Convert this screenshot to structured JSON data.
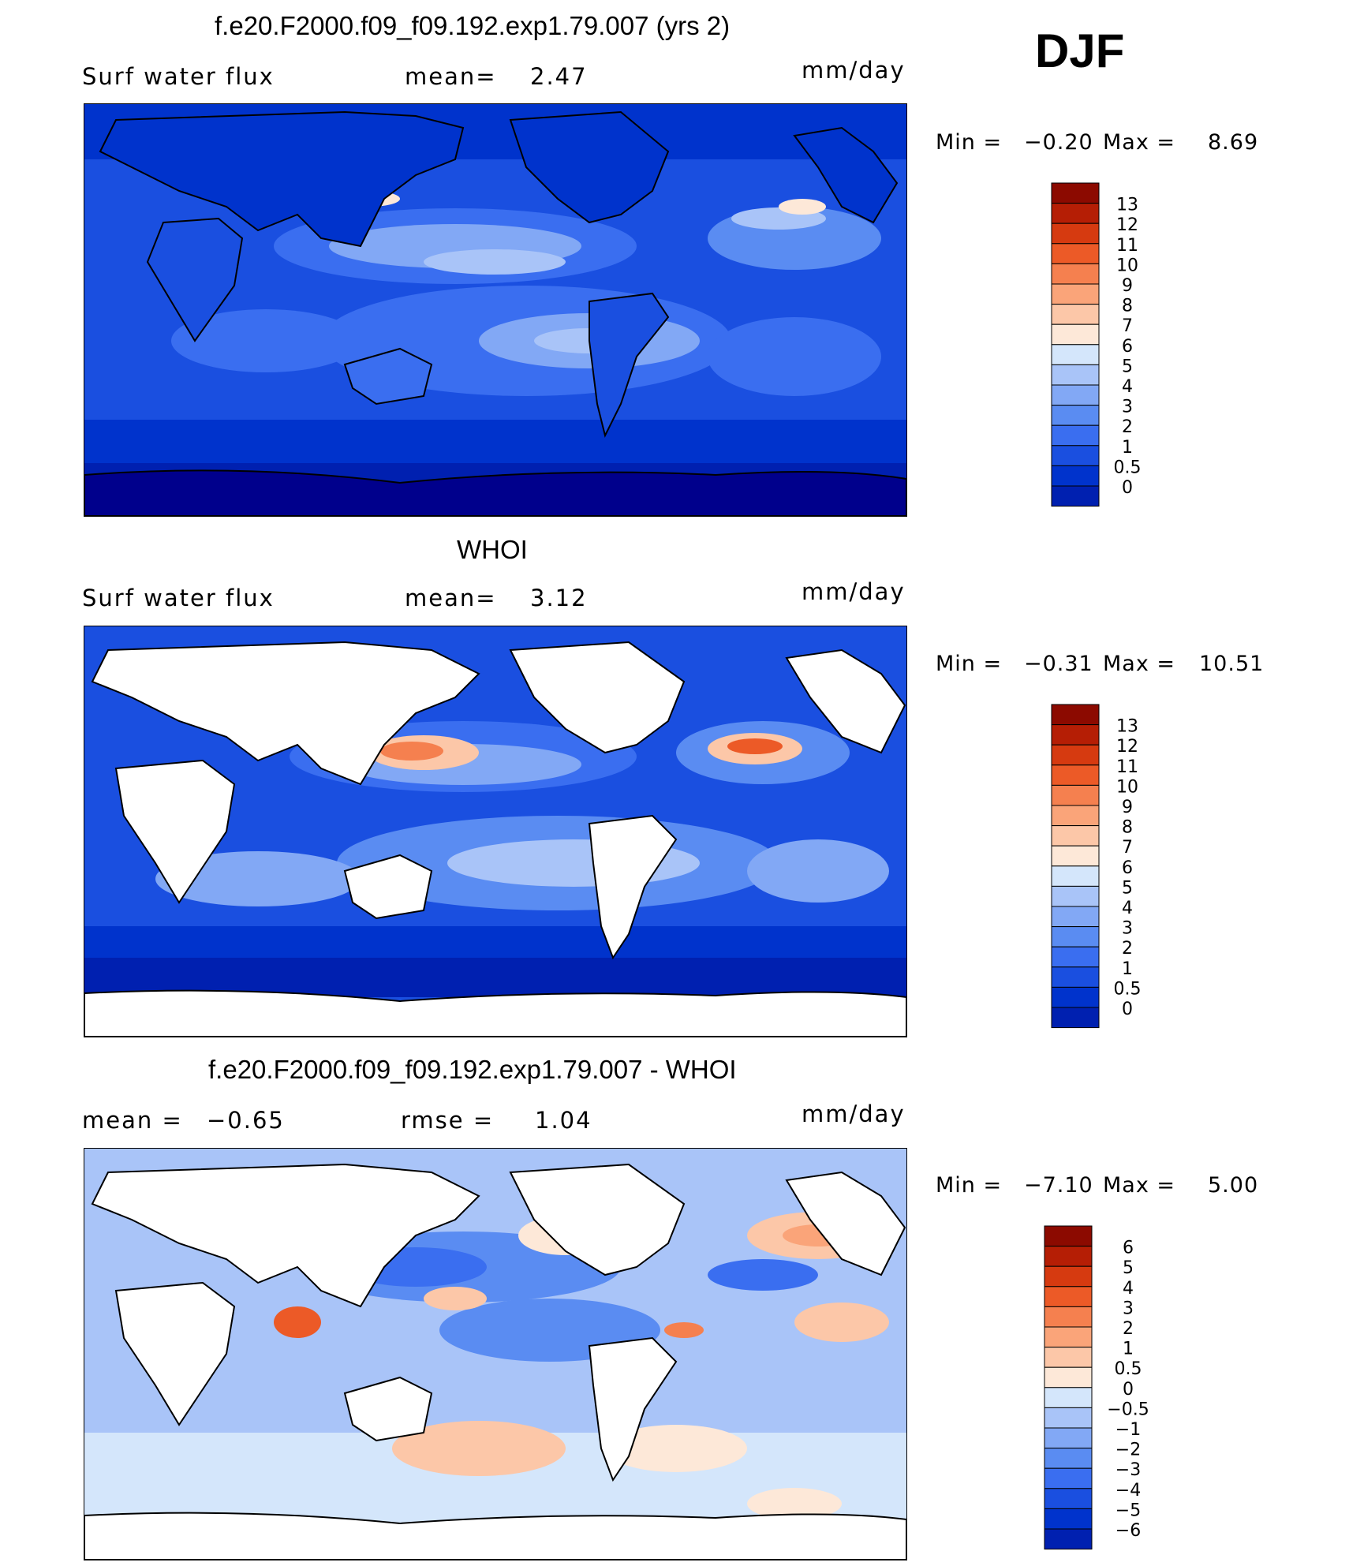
{
  "season": "DJF",
  "colors": {
    "land": "#ffffff",
    "coast": "#000000",
    "flux_scale": [
      "#00008c",
      "#0020b0",
      "#0033cc",
      "#1a4fe0",
      "#3a6ef0",
      "#5a8cf2",
      "#82a8f5",
      "#a9c4f8",
      "#d4e6fb",
      "#fde8d8",
      "#fcc7a8",
      "#faa479",
      "#f5804f",
      "#ec5a27",
      "#d63a10",
      "#b51e05",
      "#8c0a00"
    ],
    "diff_scale": [
      "#00008c",
      "#0020b0",
      "#0033cc",
      "#1a4fe0",
      "#3a6ef0",
      "#5a8cf2",
      "#82a8f5",
      "#a9c4f8",
      "#d4e6fb",
      "#fde8d8",
      "#fcc7a8",
      "#faa479",
      "#f5804f",
      "#ec5a27",
      "#d63a10",
      "#b51e05",
      "#8c0a00"
    ]
  },
  "panels": [
    {
      "title": "f.e20.F2000.f09_f09.192.exp1.79.007 (yrs 2)",
      "left_label": "Surf water flux",
      "center_label": "mean=",
      "center_value": "2.47",
      "units": "mm/day",
      "min_label": "Min =",
      "min_value": "−0.20",
      "max_label": "Max =",
      "max_value": "8.69",
      "map_icon": "world-map-model-flux",
      "colorbar_labels": [
        "13",
        "12",
        "11",
        "10",
        "9",
        "8",
        "7",
        "6",
        "5",
        "4",
        "3",
        "2",
        "1",
        "0.5",
        "0"
      ]
    },
    {
      "title": "WHOI",
      "left_label": "Surf water flux",
      "center_label": "mean=",
      "center_value": "3.12",
      "units": "mm/day",
      "min_label": "Min =",
      "min_value": "−0.31",
      "max_label": "Max =",
      "max_value": "10.51",
      "map_icon": "world-map-whoi-flux",
      "colorbar_labels": [
        "13",
        "12",
        "11",
        "10",
        "9",
        "8",
        "7",
        "6",
        "5",
        "4",
        "3",
        "2",
        "1",
        "0.5",
        "0"
      ]
    },
    {
      "title": "f.e20.F2000.f09_f09.192.exp1.79.007 - WHOI",
      "left_label": "mean =",
      "left_value": "−0.65",
      "center_label": "rmse =",
      "center_value": "1.04",
      "units": "mm/day",
      "min_label": "Min =",
      "min_value": "−7.10",
      "max_label": "Max =",
      "max_value": "5.00",
      "map_icon": "world-map-difference",
      "colorbar_labels": [
        "6",
        "5",
        "4",
        "3",
        "2",
        "1",
        "0.5",
        "0",
        "−0.5",
        "−1",
        "−2",
        "−3",
        "−4",
        "−5",
        "−6"
      ]
    }
  ]
}
